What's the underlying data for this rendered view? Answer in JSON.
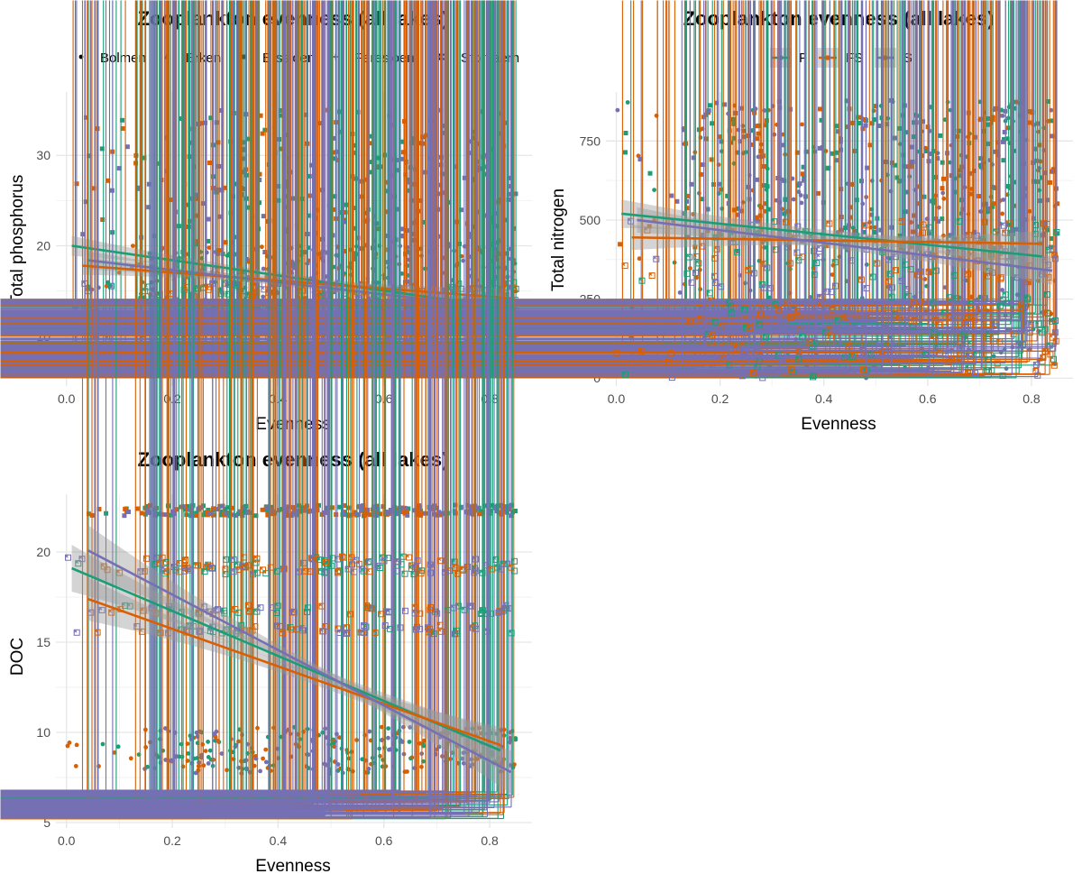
{
  "chart_data": [
    {
      "type": "scatter",
      "title": "Zooplankton evenness (all lakes)",
      "xlabel": "Evenness",
      "ylabel": "Total phosphorus",
      "xlim": [
        -0.02,
        0.88
      ],
      "ylim": [
        4.5,
        37
      ],
      "xticks": [
        0.0,
        0.2,
        0.4,
        0.6,
        0.8
      ],
      "xtick_labels": [
        "0.0",
        "0.2",
        "0.4",
        "0.6",
        "0.8"
      ],
      "yticks": [
        10,
        20,
        30
      ],
      "ytick_labels": [
        "10",
        "20",
        "30"
      ],
      "legend": {
        "position": "top",
        "kind": "shape",
        "entries": [
          "Bolmen",
          "Erken",
          "Erssjoen",
          "Feresjoen",
          "Stortjaern"
        ]
      },
      "shape_y_ranges": {
        "Bolmen": [
          13,
          20
        ],
        "Erken": [
          11,
          20
        ],
        "Erssjoen": [
          19,
          35
        ],
        "Feresjoen": [
          6,
          9
        ],
        "Stortjaern": [
          9,
          16
        ]
      },
      "scatter_x_range": [
        0.01,
        0.85
      ],
      "points_per_group": 110,
      "fits": [
        {
          "series": "F",
          "x": [
            0.01,
            0.82
          ],
          "y": [
            20.0,
            13.2
          ],
          "band": [
            1.1,
            0.35,
            1.2
          ]
        },
        {
          "series": "FS",
          "x": [
            0.03,
            0.84
          ],
          "y": [
            17.8,
            14.2
          ],
          "band": [
            1.0,
            0.35,
            1.1
          ]
        },
        {
          "series": "S",
          "x": [
            0.04,
            0.84
          ],
          "y": [
            18.4,
            13.0
          ],
          "band": [
            1.0,
            0.35,
            1.1
          ]
        }
      ]
    },
    {
      "type": "scatter",
      "title": "Zooplankton evenness (all lakes)",
      "xlabel": "Evenness",
      "ylabel": "Total nitrogen",
      "xlim": [
        -0.02,
        0.88
      ],
      "ylim": [
        -25,
        905
      ],
      "xticks": [
        0.0,
        0.2,
        0.4,
        0.6,
        0.8
      ],
      "xtick_labels": [
        "0.0",
        "0.2",
        "0.4",
        "0.6",
        "0.8"
      ],
      "yticks": [
        0,
        250,
        500,
        750
      ],
      "ytick_labels": [
        "0",
        "250",
        "500",
        "750"
      ],
      "legend": {
        "position": "top",
        "kind": "color",
        "entries": [
          "F",
          "FS",
          "S"
        ]
      },
      "shape_y_ranges": {
        "Bolmen": [
          0,
          880
        ],
        "Erken": [
          150,
          880
        ],
        "Erssjoen": [
          400,
          880
        ],
        "Feresjoen": [
          0,
          250
        ],
        "Stortjaern": [
          0,
          500
        ]
      },
      "scatter_x_range": [
        0.0,
        0.85
      ],
      "points_per_group": 110,
      "fits": [
        {
          "series": "F",
          "x": [
            0.01,
            0.82
          ],
          "y": [
            520,
            385
          ],
          "band": [
            45,
            15,
            45
          ]
        },
        {
          "series": "FS",
          "x": [
            0.03,
            0.82
          ],
          "y": [
            445,
            425
          ],
          "band": [
            40,
            15,
            40
          ]
        },
        {
          "series": "S",
          "x": [
            0.04,
            0.84
          ],
          "y": [
            500,
            340
          ],
          "band": [
            40,
            15,
            45
          ]
        }
      ]
    },
    {
      "type": "scatter",
      "title": "Zooplankton evenness (all lakes)",
      "xlabel": "Evenness",
      "ylabel": "DOC",
      "xlim": [
        -0.02,
        0.88
      ],
      "ylim": [
        4.7,
        23.2
      ],
      "xticks": [
        0.0,
        0.2,
        0.4,
        0.6,
        0.8
      ],
      "xtick_labels": [
        "0.0",
        "0.2",
        "0.4",
        "0.6",
        "0.8"
      ],
      "yticks": [
        5,
        10,
        15,
        20
      ],
      "ytick_labels": [
        "5",
        "10",
        "15",
        "20"
      ],
      "legend": null,
      "shape_y_ranges": {
        "Bolmen": [
          7.7,
          10.3
        ],
        "Erken": [
          11,
          12.8
        ],
        "Erssjoen": [
          22,
          22.6
        ],
        "Feresjoen": [
          5.2,
          6.8
        ],
        "Stortjaern": [
          15.5,
          20.2
        ]
      },
      "scatter_x_range": [
        0.0,
        0.85
      ],
      "points_per_group": 95,
      "fits": [
        {
          "series": "F",
          "x": [
            0.01,
            0.82
          ],
          "y": [
            19.1,
            9.0
          ],
          "band": [
            1.3,
            0.3,
            1.1
          ]
        },
        {
          "series": "FS",
          "x": [
            0.04,
            0.82
          ],
          "y": [
            17.4,
            9.3
          ],
          "band": [
            1.2,
            0.3,
            1.0
          ]
        },
        {
          "series": "S",
          "x": [
            0.04,
            0.84
          ],
          "y": [
            20.1,
            7.8
          ],
          "band": [
            1.4,
            0.3,
            1.2
          ]
        }
      ]
    }
  ],
  "series_colors": {
    "F": "#1b9e77",
    "FS": "#d95f02",
    "S": "#7570b3"
  },
  "shape_map": {
    "Bolmen": "circle",
    "Erken": "triangle",
    "Erssjoen": "square",
    "Feresjoen": "plus",
    "Stortjaern": "boxed-x"
  },
  "band_color": "#999999"
}
